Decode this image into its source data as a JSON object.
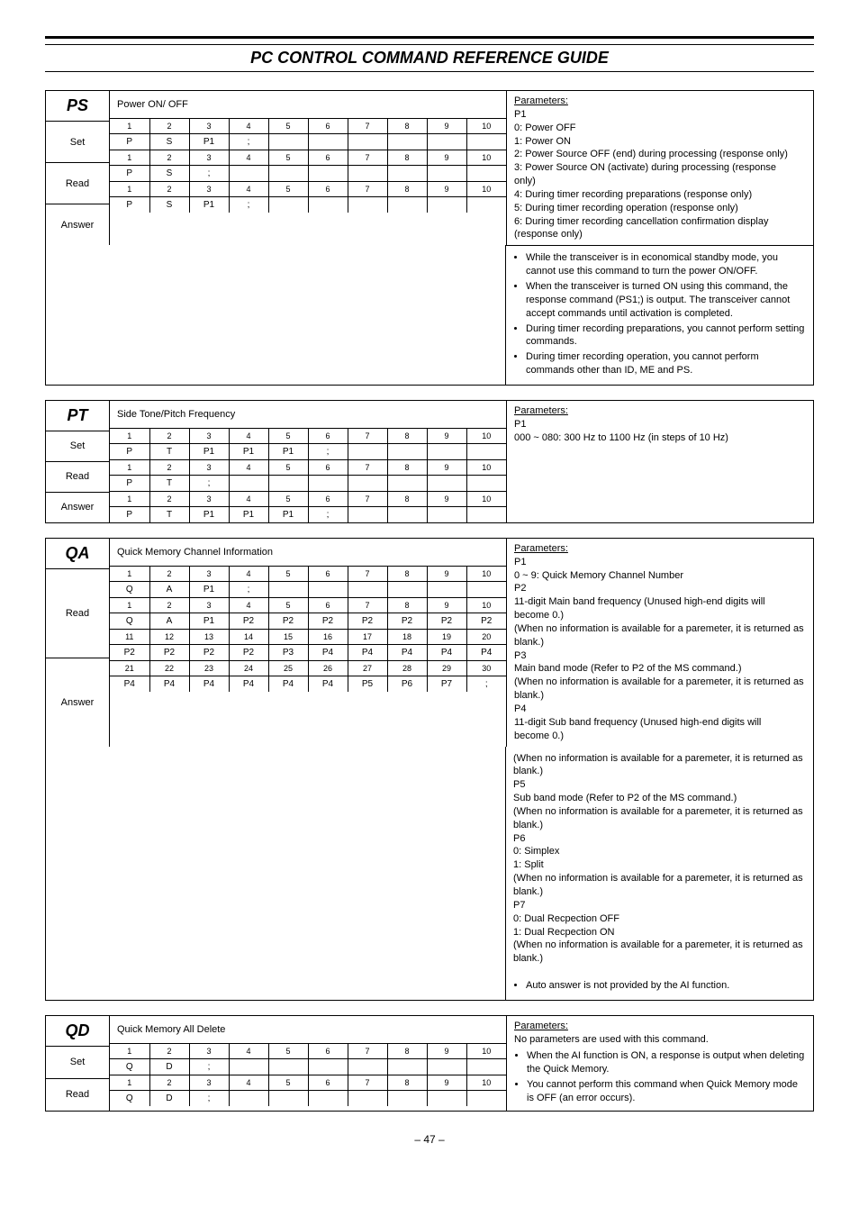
{
  "page": {
    "title": "PC CONTROL COMMAND REFERENCE GUIDE",
    "number": "– 47 –"
  },
  "ps": {
    "code": "PS",
    "title": "Power ON/ OFF",
    "labels": {
      "set": "Set",
      "read": "Read",
      "answer": "Answer"
    },
    "grids": {
      "set": [
        [
          "1",
          "2",
          "3",
          "4",
          "5",
          "6",
          "7",
          "8",
          "9",
          "10"
        ],
        [
          "P",
          "S",
          "P1",
          ";",
          "",
          "",
          "",
          "",
          "",
          ""
        ]
      ],
      "read": [
        [
          "1",
          "2",
          "3",
          "4",
          "5",
          "6",
          "7",
          "8",
          "9",
          "10"
        ],
        [
          "P",
          "S",
          ";",
          "",
          "",
          "",
          "",
          "",
          "",
          ""
        ]
      ],
      "answer": [
        [
          "1",
          "2",
          "3",
          "4",
          "5",
          "6",
          "7",
          "8",
          "9",
          "10"
        ],
        [
          "P",
          "S",
          "P1",
          ";",
          "",
          "",
          "",
          "",
          "",
          ""
        ]
      ]
    },
    "params": {
      "head": "Parameters:",
      "p1label": "P1",
      "l0": "0:  Power OFF",
      "l1": "1:  Power ON",
      "l2": "2:  Power Source OFF (end) during processing (response only)",
      "l3": "3:  Power Source ON (activate) during processing (response",
      "l3b": "only)",
      "l4": "4:  During timer recording preparations (response only)",
      "l5": "5:  During timer recording operation (response only)",
      "l6": "6:  During timer recording cancellation confirmation display",
      "l6b": "(response only)"
    },
    "notes": {
      "n1": "While the transceiver is in economical standby mode, you cannot use this command to turn the power ON/OFF.",
      "n2": "When the transceiver is turned ON using this command, the response command (PS1;) is output. The transceiver cannot accept commands until activation is completed.",
      "n3": "During timer recording preparations, you cannot perform setting commands.",
      "n4": "During timer recording operation, you cannot perform commands other than ID, ME and PS."
    }
  },
  "pt": {
    "code": "PT",
    "title": "Side Tone/Pitch Frequency",
    "labels": {
      "set": "Set",
      "read": "Read",
      "answer": "Answer"
    },
    "grids": {
      "set": [
        [
          "1",
          "2",
          "3",
          "4",
          "5",
          "6",
          "7",
          "8",
          "9",
          "10"
        ],
        [
          "P",
          "T",
          "P1",
          "P1",
          "P1",
          ";",
          "",
          "",
          "",
          ""
        ]
      ],
      "read": [
        [
          "1",
          "2",
          "3",
          "4",
          "5",
          "6",
          "7",
          "8",
          "9",
          "10"
        ],
        [
          "P",
          "T",
          ";",
          "",
          "",
          "",
          "",
          "",
          "",
          ""
        ]
      ],
      "answer": [
        [
          "1",
          "2",
          "3",
          "4",
          "5",
          "6",
          "7",
          "8",
          "9",
          "10"
        ],
        [
          "P",
          "T",
          "P1",
          "P1",
          "P1",
          ";",
          "",
          "",
          "",
          ""
        ]
      ]
    },
    "params": {
      "head": "Parameters:",
      "p1label": "P1",
      "l0": " 000 ~ 080:  300 Hz to 1100 Hz (in steps of 10 Hz)"
    }
  },
  "qa": {
    "code": "QA",
    "title": "Quick Memory Channel Information",
    "labels": {
      "read": "Read",
      "answer": "Answer"
    },
    "grids": {
      "read": [
        [
          "1",
          "2",
          "3",
          "4",
          "5",
          "6",
          "7",
          "8",
          "9",
          "10"
        ],
        [
          "Q",
          "A",
          "P1",
          ";",
          "",
          "",
          "",
          "",
          "",
          ""
        ]
      ],
      "ans1": [
        [
          "1",
          "2",
          "3",
          "4",
          "5",
          "6",
          "7",
          "8",
          "9",
          "10"
        ],
        [
          "Q",
          "A",
          "P1",
          "P2",
          "P2",
          "P2",
          "P2",
          "P2",
          "P2",
          "P2"
        ]
      ],
      "ans2": [
        [
          "11",
          "12",
          "13",
          "14",
          "15",
          "16",
          "17",
          "18",
          "19",
          "20"
        ],
        [
          "P2",
          "P2",
          "P2",
          "P2",
          "P3",
          "P4",
          "P4",
          "P4",
          "P4",
          "P4"
        ]
      ],
      "ans3": [
        [
          "21",
          "22",
          "23",
          "24",
          "25",
          "26",
          "27",
          "28",
          "29",
          "30"
        ],
        [
          "P4",
          "P4",
          "P4",
          "P4",
          "P4",
          "P4",
          "P5",
          "P6",
          "P7",
          ";"
        ]
      ]
    },
    "params": {
      "head": "Parameters:",
      "p1label": "P1",
      "p1": " 0 ~ 9:  Quick Memory Channel Number",
      "p2label": "P2",
      "p2a": " 11-digit Main band frequency (Unused high-end digits will",
      "p2b": " become 0.)",
      "p2c": "(When no information is available for a paremeter, it is returned as blank.)",
      "p3label": "P3",
      "p3a": " Main band mode (Refer to P2 of the MS command.)",
      "p3b": "(When no information is available for a paremeter, it is returned as blank.)",
      "p4label": "P4",
      "p4a": " 11-digit Sub band frequency (Unused high-end digits will",
      "p4b": " become 0.)",
      "p4c": "(When no information is available for a paremeter, it is returned as blank.)",
      "p5label": "P5",
      "p5a": " Sub band mode (Refer to P2 of the MS command.)",
      "p5b": "(When no information is available for a paremeter, it is returned as blank.)",
      "p6label": "P6",
      "p6a": " 0:  Simplex",
      "p6b": " 1:  Split",
      "p6c": "(When no information is available for a paremeter, it is returned as blank.)",
      "p7label": "P7",
      "p7a": " 0:  Dual Recpection OFF",
      "p7b": " 1:  Dual Recpection ON",
      "p7c": "(When no information is available for a paremeter, it is returned as blank.)",
      "note": "Auto answer is not provided by the AI function."
    }
  },
  "qd": {
    "code": "QD",
    "title": "Quick Memory All Delete",
    "labels": {
      "set": "Set",
      "read": "Read"
    },
    "grids": {
      "set": [
        [
          "1",
          "2",
          "3",
          "4",
          "5",
          "6",
          "7",
          "8",
          "9",
          "10"
        ],
        [
          "Q",
          "D",
          ";",
          "",
          "",
          "",
          "",
          "",
          "",
          ""
        ]
      ],
      "read": [
        [
          "1",
          "2",
          "3",
          "4",
          "5",
          "6",
          "7",
          "8",
          "9",
          "10"
        ],
        [
          "Q",
          "D",
          ";",
          "",
          "",
          "",
          "",
          "",
          "",
          ""
        ]
      ]
    },
    "params": {
      "head": "Parameters:",
      "l0": "No parameters are used with this command.",
      "n1": "When the AI function is ON, a response is output when deleting the Quick Memory.",
      "n2": "You cannot perform this command when Quick Memory mode is OFF (an error occurs)."
    }
  }
}
